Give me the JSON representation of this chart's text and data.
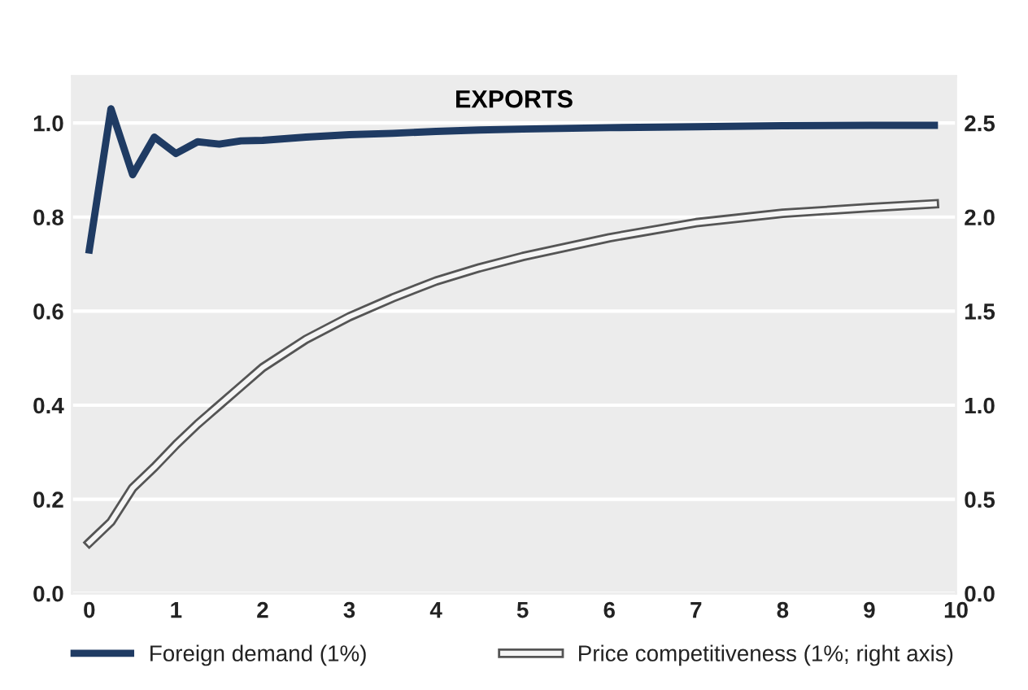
{
  "chart_data": {
    "type": "line",
    "title": "EXPORTS",
    "x": [
      0,
      0.25,
      0.5,
      0.75,
      1,
      1.25,
      1.5,
      1.75,
      2,
      2.5,
      3,
      3.5,
      4,
      4.5,
      5,
      6,
      7,
      8,
      9,
      9.75
    ],
    "series": [
      {
        "name": "Foreign demand (1%)",
        "color": "#1f3b63",
        "values": [
          0.73,
          1.03,
          0.89,
          0.97,
          0.935,
          0.96,
          0.955,
          0.962,
          0.963,
          0.97,
          0.975,
          0.978,
          0.982,
          0.985,
          0.987,
          0.99,
          0.992,
          0.994,
          0.995,
          0.995
        ]
      },
      {
        "name": "Price competitiveness (1%; right axis)",
        "color": "#f5f5f5",
        "axis": "y2",
        "values": [
          0.27,
          0.38,
          0.56,
          0.67,
          0.79,
          0.9,
          1.0,
          1.1,
          1.2,
          1.35,
          1.47,
          1.57,
          1.66,
          1.73,
          1.79,
          1.89,
          1.97,
          2.02,
          2.05,
          2.07
        ]
      }
    ],
    "xlim": [
      -0.2,
      10
    ],
    "xticks": [
      0,
      1,
      2,
      3,
      4,
      5,
      6,
      7,
      8,
      9,
      10
    ],
    "ylim": [
      0,
      1.1
    ],
    "yticks": [
      {
        "value": 0,
        "label": "0.0"
      },
      {
        "value": 0.2,
        "label": "0.2"
      },
      {
        "value": 0.4,
        "label": "0.4"
      },
      {
        "value": 0.6,
        "label": "0.6"
      },
      {
        "value": 0.8,
        "label": "0.8"
      },
      {
        "value": 1.0,
        "label": "1.0"
      }
    ],
    "y2lim": [
      0,
      2.75
    ],
    "y2ticks": [
      {
        "value": 0,
        "label": "0.0"
      },
      {
        "value": 0.5,
        "label": "0.5"
      },
      {
        "value": 1.0,
        "label": "1.0"
      },
      {
        "value": 1.5,
        "label": "1.5"
      },
      {
        "value": 2.0,
        "label": "2.0"
      },
      {
        "value": 2.5,
        "label": "2.5"
      }
    ],
    "grid": "y",
    "legend": "bottom",
    "line_style": "solid",
    "marker": "none"
  }
}
